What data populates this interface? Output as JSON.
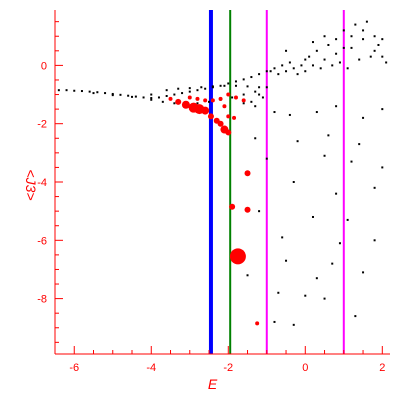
{
  "chart_data": {
    "type": "scatter",
    "xlabel": "E",
    "ylabel": "<J3>",
    "xlim": [
      -6.5,
      2.2
    ],
    "ylim": [
      -9.9,
      1.9
    ],
    "grid": false,
    "colors": {
      "axis": "#ff0000",
      "series_small": "#000000",
      "series_large": "#ff0000"
    },
    "x_ticks": [
      {
        "value": -6,
        "label": "-6"
      },
      {
        "value": -4,
        "label": "-4"
      },
      {
        "value": -2,
        "label": "-2"
      },
      {
        "value": 0,
        "label": "0"
      },
      {
        "value": 2,
        "label": "2"
      }
    ],
    "y_ticks": [
      {
        "value": 0,
        "label": "0"
      },
      {
        "value": -2,
        "label": "-2"
      },
      {
        "value": -4,
        "label": "-4"
      },
      {
        "value": -6,
        "label": "-6"
      },
      {
        "value": -8,
        "label": "-8"
      }
    ],
    "vlines": [
      {
        "x": -2.45,
        "color": "#0000ff"
      },
      {
        "x": -1.95,
        "color": "#008000"
      },
      {
        "x": -1.0,
        "color": "#ff00ff"
      },
      {
        "x": 1.0,
        "color": "#ff00ff"
      }
    ],
    "black_points": [
      [
        -6.4,
        -0.85
      ],
      [
        -6.2,
        -0.85
      ],
      [
        -6.0,
        -0.87
      ],
      [
        -5.8,
        -0.88
      ],
      [
        -5.6,
        -0.9
      ],
      [
        -5.4,
        -0.92
      ],
      [
        -5.2,
        -0.95
      ],
      [
        -5.0,
        -0.98
      ],
      [
        -4.8,
        -1.01
      ],
      [
        -4.6,
        -1.04
      ],
      [
        -4.4,
        -1.07
      ],
      [
        -4.2,
        -1.1
      ],
      [
        -4.0,
        -1.12
      ],
      [
        -3.8,
        -1.1
      ],
      [
        -3.6,
        -1.05
      ],
      [
        -3.4,
        -1.0
      ],
      [
        -3.2,
        -0.95
      ],
      [
        -3.0,
        -0.9
      ],
      [
        -2.8,
        -0.85
      ],
      [
        -2.6,
        -0.8
      ],
      [
        -2.4,
        -0.75
      ],
      [
        -2.2,
        -0.7
      ],
      [
        -2.0,
        -0.62
      ],
      [
        -1.8,
        -0.55
      ],
      [
        -1.6,
        -0.48
      ],
      [
        -1.4,
        -0.4
      ],
      [
        -1.2,
        -0.3
      ],
      [
        -1.0,
        -0.2
      ],
      [
        -5.5,
        -0.95
      ],
      [
        -5.0,
        -1.02
      ],
      [
        -4.5,
        -1.08
      ],
      [
        -4.0,
        -1.18
      ],
      [
        -3.7,
        -1.25
      ],
      [
        -3.4,
        -1.3
      ],
      [
        -3.1,
        -1.32
      ],
      [
        -2.8,
        -1.3
      ],
      [
        -2.5,
        -1.25
      ],
      [
        -2.2,
        -1.18
      ],
      [
        -1.9,
        -1.1
      ],
      [
        -1.6,
        -1.0
      ],
      [
        -1.3,
        -0.9
      ],
      [
        -1.0,
        -0.75
      ],
      [
        -4.0,
        -1.0
      ],
      [
        -3.6,
        -0.85
      ],
      [
        -3.3,
        -0.8
      ],
      [
        -3.0,
        -0.78
      ],
      [
        -2.7,
        -0.75
      ],
      [
        -2.4,
        -0.72
      ],
      [
        -2.1,
        -0.7
      ],
      [
        -1.8,
        -0.7
      ],
      [
        -1.5,
        -0.72
      ],
      [
        -1.2,
        -0.75
      ],
      [
        -1.6,
        -1.3
      ],
      [
        -1.4,
        -1.25
      ],
      [
        -1.2,
        -1.0
      ],
      [
        -1.3,
        -1.4
      ],
      [
        -1.1,
        -1.1
      ],
      [
        -0.9,
        -0.2
      ],
      [
        -0.8,
        -0.1
      ],
      [
        -0.7,
        -0.3
      ],
      [
        -0.6,
        0.0
      ],
      [
        -0.5,
        -0.2
      ],
      [
        -0.4,
        0.1
      ],
      [
        -0.3,
        -0.1
      ],
      [
        -0.2,
        -0.3
      ],
      [
        -0.1,
        0.0
      ],
      [
        0.0,
        -0.2
      ],
      [
        0.1,
        0.3
      ],
      [
        0.2,
        0.0
      ],
      [
        0.3,
        0.5
      ],
      [
        0.4,
        -0.1
      ],
      [
        0.5,
        0.2
      ],
      [
        0.6,
        0.7
      ],
      [
        0.7,
        0.0
      ],
      [
        0.8,
        0.9
      ],
      [
        0.9,
        0.1
      ],
      [
        1.0,
        1.2
      ],
      [
        1.1,
        -0.1
      ],
      [
        1.2,
        0.6
      ],
      [
        1.3,
        1.4
      ],
      [
        1.4,
        0.2
      ],
      [
        1.5,
        0.9
      ],
      [
        1.6,
        1.5
      ],
      [
        1.7,
        0.3
      ],
      [
        1.8,
        1.0
      ],
      [
        1.9,
        0.7
      ],
      [
        2.0,
        0.3
      ],
      [
        2.1,
        0.1
      ],
      [
        -0.5,
        0.5
      ],
      [
        0.0,
        0.2
      ],
      [
        0.2,
        0.8
      ],
      [
        0.5,
        1.0
      ],
      [
        0.8,
        0.4
      ],
      [
        1.0,
        0.6
      ],
      [
        1.2,
        1.0
      ],
      [
        1.5,
        1.2
      ],
      [
        1.8,
        0.5
      ],
      [
        2.0,
        0.9
      ],
      [
        -0.8,
        -1.6
      ],
      [
        -0.4,
        -1.7
      ],
      [
        0.3,
        -1.6
      ],
      [
        0.8,
        -1.4
      ],
      [
        1.5,
        -1.8
      ],
      [
        2.0,
        -1.5
      ],
      [
        -1.3,
        -2.5
      ],
      [
        -0.2,
        -2.6
      ],
      [
        0.6,
        -2.4
      ],
      [
        1.4,
        -2.7
      ],
      [
        -1.0,
        -3.2
      ],
      [
        0.5,
        -3.1
      ],
      [
        1.2,
        -3.3
      ],
      [
        2.0,
        -3.5
      ],
      [
        -0.3,
        -4.0
      ],
      [
        0.8,
        -4.4
      ],
      [
        1.8,
        -4.2
      ],
      [
        -1.2,
        -5.0
      ],
      [
        0.2,
        -5.2
      ],
      [
        1.1,
        -5.3
      ],
      [
        -0.6,
        -5.9
      ],
      [
        0.9,
        -6.1
      ],
      [
        1.8,
        -6.0
      ],
      [
        -0.5,
        -6.7
      ],
      [
        0.7,
        -6.8
      ],
      [
        -1.5,
        -7.2
      ],
      [
        0.3,
        -7.3
      ],
      [
        1.5,
        -7.1
      ],
      [
        -0.7,
        -7.8
      ],
      [
        0.0,
        -7.9
      ],
      [
        0.5,
        -8.0
      ],
      [
        -0.8,
        -8.8
      ],
      [
        -0.3,
        -8.9
      ],
      [
        1.3,
        -8.6
      ]
    ],
    "red_points": [
      [
        -3.5,
        -1.15,
        2
      ],
      [
        -3.3,
        -1.25,
        3
      ],
      [
        -3.1,
        -1.35,
        4
      ],
      [
        -2.9,
        -1.45,
        5
      ],
      [
        -2.75,
        -1.5,
        5
      ],
      [
        -2.6,
        -1.55,
        4
      ],
      [
        -2.45,
        -1.75,
        3
      ],
      [
        -2.3,
        -1.9,
        3
      ],
      [
        -2.2,
        -2.0,
        3
      ],
      [
        -2.1,
        -2.2,
        4
      ],
      [
        -2.0,
        -2.3,
        3
      ],
      [
        -3.0,
        -1.1,
        2
      ],
      [
        -2.8,
        -1.15,
        2
      ],
      [
        -2.6,
        -1.2,
        2
      ],
      [
        -2.4,
        -1.2,
        2
      ],
      [
        -2.2,
        -1.15,
        2
      ],
      [
        -2.0,
        -1.0,
        2
      ],
      [
        -1.8,
        -1.1,
        2
      ],
      [
        -1.6,
        -1.2,
        2
      ],
      [
        -2.0,
        -1.75,
        2
      ],
      [
        -1.85,
        -1.8,
        2
      ],
      [
        -2.1,
        -1.4,
        2
      ],
      [
        -1.5,
        -3.7,
        3
      ],
      [
        -1.9,
        -4.85,
        3
      ],
      [
        -1.5,
        -4.95,
        3
      ],
      [
        -1.75,
        -6.55,
        8
      ],
      [
        -1.25,
        -8.85,
        2
      ]
    ]
  }
}
